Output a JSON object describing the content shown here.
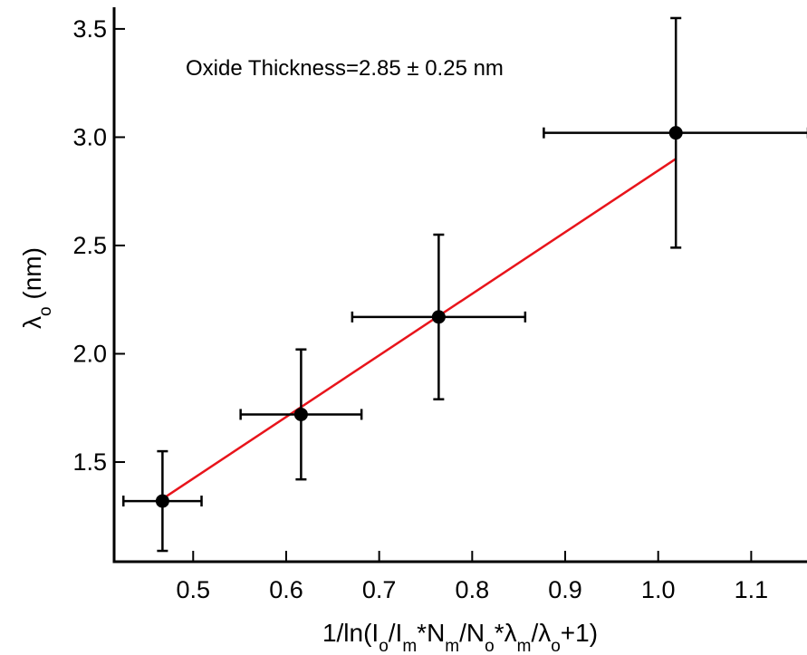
{
  "chart_data": {
    "type": "scatter",
    "annotation": "Oxide Thickness=2.85 ± 0.25 nm",
    "xlabel": {
      "parts": [
        {
          "t": "1/ln(I",
          "s": "n"
        },
        {
          "t": "o",
          "s": "sub"
        },
        {
          "t": "/I",
          "s": "n"
        },
        {
          "t": "m",
          "s": "sub"
        },
        {
          "t": "*N",
          "s": "n"
        },
        {
          "t": "m",
          "s": "sub"
        },
        {
          "t": "/N",
          "s": "n"
        },
        {
          "t": "o",
          "s": "sub"
        },
        {
          "t": "*λ",
          "s": "n"
        },
        {
          "t": "m",
          "s": "sub"
        },
        {
          "t": "/λ",
          "s": "n"
        },
        {
          "t": "o",
          "s": "sub"
        },
        {
          "t": "+1)",
          "s": "n"
        }
      ]
    },
    "ylabel": {
      "parts": [
        {
          "t": "λ",
          "s": "n"
        },
        {
          "t": "o",
          "s": "sub"
        },
        {
          "t": " (nm)",
          "s": "n"
        }
      ]
    },
    "xlim": [
      0.415,
      1.16
    ],
    "ylim": [
      1.04,
      3.6
    ],
    "xticks": [
      0.5,
      0.6,
      0.7,
      0.8,
      0.9,
      1.0,
      1.1
    ],
    "xtick_labels": [
      "0.5",
      "0.6",
      "0.7",
      "0.8",
      "0.9",
      "1.0",
      "1.1"
    ],
    "yticks": [
      1.5,
      2.0,
      2.5,
      3.0,
      3.5
    ],
    "ytick_labels": [
      "1.5",
      "2.0",
      "2.5",
      "3.0",
      "3.5"
    ],
    "points": [
      {
        "x": 0.467,
        "y": 1.32,
        "xerr": 0.042,
        "yerr_low": 0.23,
        "yerr_high": 0.23
      },
      {
        "x": 0.616,
        "y": 1.72,
        "xerr": 0.065,
        "yerr_low": 0.3,
        "yerr_high": 0.3
      },
      {
        "x": 0.764,
        "y": 2.17,
        "xerr": 0.093,
        "yerr_low": 0.38,
        "yerr_high": 0.38
      },
      {
        "x": 1.019,
        "y": 3.02,
        "xerr": 0.142,
        "yerr_low": 0.53,
        "yerr_high": 0.53
      }
    ],
    "fit_line": {
      "x": [
        0.467,
        1.019
      ],
      "y": [
        1.33,
        2.9
      ]
    },
    "colors": {
      "points": "#000000",
      "errorbars": "#000000",
      "fit": "#e8141b",
      "axes": "#000000"
    },
    "grid": false,
    "legend": "none"
  }
}
